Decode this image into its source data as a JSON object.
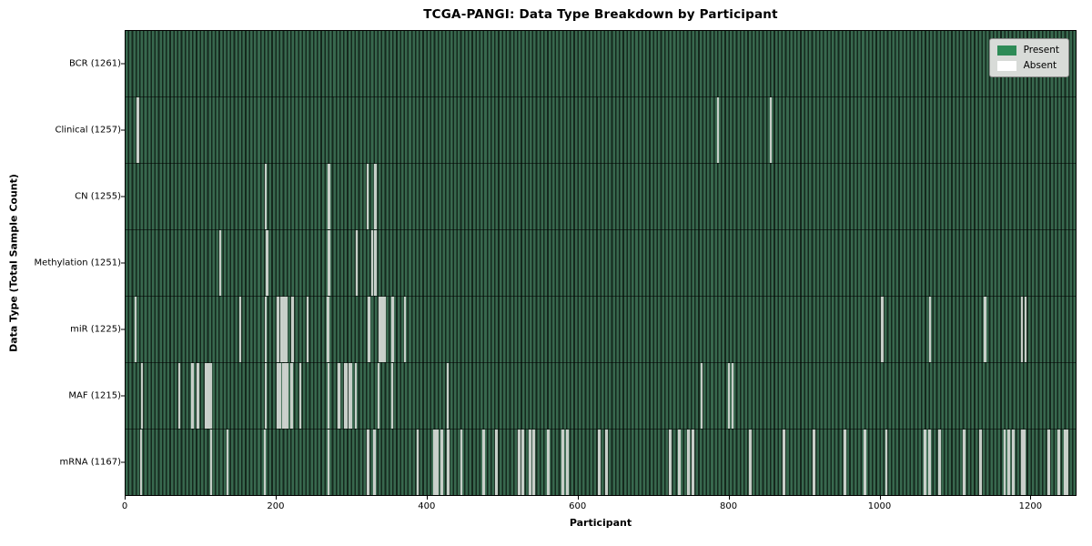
{
  "chart_data": {
    "type": "heatmap",
    "title": "TCGA-PANGI: Data Type Breakdown by Participant",
    "xlabel": "Participant",
    "ylabel": "Data Type (Total Sample Count)",
    "x_ticks": [
      0,
      200,
      400,
      600,
      800,
      1000,
      1200
    ],
    "x_range": [
      0,
      1261
    ],
    "n_participants": 1261,
    "grid": false,
    "legend_position": "upper right",
    "colors": {
      "present": "#2e8b57",
      "absent": "#ffffff",
      "bar_edge": "#16281e",
      "legend_bg": "#d8dbd8"
    },
    "legend": [
      {
        "label": "Present",
        "color": "#2e8b57"
      },
      {
        "label": "Absent",
        "color": "#ffffff"
      }
    ],
    "rows": [
      {
        "data_type": "BCR",
        "label": "BCR (1261)",
        "total_samples": 1261,
        "absent_participants": []
      },
      {
        "data_type": "Clinical",
        "label": "Clinical (1257)",
        "total_samples": 1257,
        "absent_participants": [
          15,
          16,
          785,
          855
        ]
      },
      {
        "data_type": "CN",
        "label": "CN (1255)",
        "total_samples": 1255,
        "absent_participants": [
          185,
          268,
          269,
          320,
          330,
          331
        ]
      },
      {
        "data_type": "Methylation",
        "label": "Methylation (1251)",
        "total_samples": 1251,
        "absent_participants": [
          124,
          186,
          187,
          268,
          269,
          305,
          306,
          326,
          330,
          331
        ]
      },
      {
        "data_type": "miR",
        "label": "miR (1225)",
        "total_samples": 1225,
        "absent_participants": [
          12,
          151,
          185,
          200,
          201,
          202,
          205,
          206,
          208,
          209,
          211,
          212,
          220,
          221,
          240,
          267,
          268,
          321,
          322,
          336,
          337,
          339,
          340,
          342,
          343,
          353,
          354,
          369,
          1003,
          1004,
          1066,
          1067,
          1139,
          1140,
          1189,
          1193
        ]
      },
      {
        "data_type": "MAF",
        "label": "MAF (1215)",
        "total_samples": 1215,
        "absent_participants": [
          20,
          70,
          87,
          88,
          94,
          95,
          105,
          106,
          107,
          108,
          109,
          110,
          111,
          112,
          185,
          201,
          202,
          203,
          204,
          208,
          209,
          210,
          211,
          212,
          213,
          214,
          219,
          220,
          231,
          268,
          281,
          282,
          283,
          290,
          291,
          292,
          296,
          297,
          298,
          304,
          335,
          353,
          426,
          763,
          800,
          805
        ]
      },
      {
        "data_type": "mRNA",
        "label": "mRNA (1167)",
        "total_samples": 1167,
        "absent_participants": [
          19,
          112,
          134,
          184,
          268,
          320,
          321,
          329,
          330,
          386,
          387,
          408,
          409,
          412,
          413,
          418,
          419,
          426,
          427,
          444,
          445,
          474,
          475,
          490,
          491,
          520,
          521,
          522,
          526,
          527,
          535,
          536,
          540,
          541,
          559,
          560,
          579,
          580,
          585,
          586,
          627,
          628,
          637,
          638,
          721,
          722,
          733,
          734,
          745,
          746,
          747,
          751,
          752,
          827,
          828,
          872,
          873,
          912,
          913,
          953,
          954,
          980,
          981,
          1008,
          1009,
          1059,
          1060,
          1061,
          1065,
          1066,
          1079,
          1080,
          1111,
          1112,
          1133,
          1134,
          1165,
          1166,
          1171,
          1172,
          1177,
          1178,
          1188,
          1189,
          1191,
          1192,
          1224,
          1225,
          1237,
          1238,
          1245,
          1246,
          1248,
          1249
        ]
      }
    ]
  }
}
